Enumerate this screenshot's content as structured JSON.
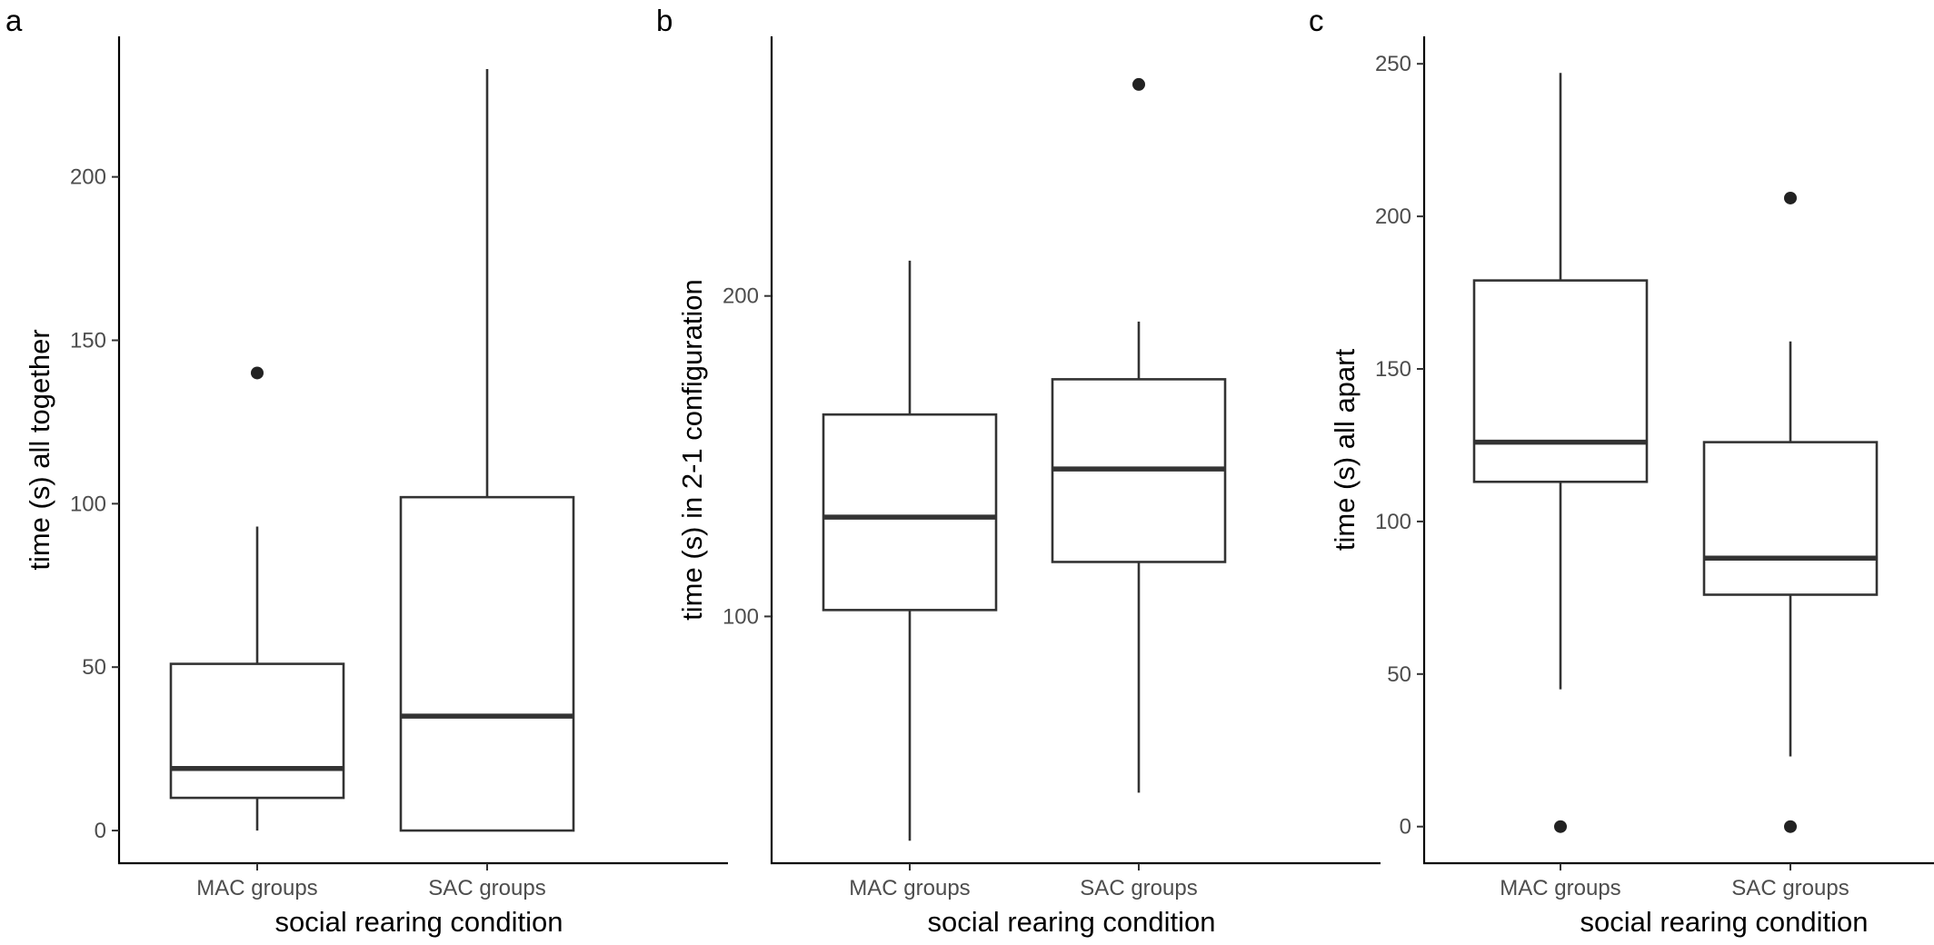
{
  "chart_data": [
    {
      "panel": "a",
      "type": "boxplot",
      "categories": [
        "MAC groups",
        "SAC groups"
      ],
      "xlabel": "social rearing condition",
      "ylabel": "time (s) all together",
      "ylim": [
        -10,
        243
      ],
      "yticks": [
        0,
        50,
        100,
        150,
        200
      ],
      "boxes": [
        {
          "category": "MAC groups",
          "min": 0,
          "q1": 10,
          "median": 19,
          "q3": 51,
          "max": 93,
          "outliers": [
            140
          ]
        },
        {
          "category": "SAC groups",
          "min": 0,
          "q1": 0,
          "median": 35,
          "q3": 102,
          "max": 233,
          "outliers": []
        }
      ],
      "grid": false,
      "legend": "none"
    },
    {
      "panel": "b",
      "type": "boxplot",
      "categories": [
        "MAC groups",
        "SAC groups"
      ],
      "xlabel": "social rearing condition",
      "ylabel": "time (s) in 2-1 configuration",
      "ylim": [
        23,
        281
      ],
      "yticks": [
        100,
        200
      ],
      "boxes": [
        {
          "category": "MAC groups",
          "min": 30,
          "q1": 102,
          "median": 131,
          "q3": 163,
          "max": 211,
          "outliers": []
        },
        {
          "category": "SAC groups",
          "min": 45,
          "q1": 117,
          "median": 146,
          "q3": 174,
          "max": 192,
          "outliers": [
            266
          ]
        }
      ],
      "grid": false,
      "legend": "none"
    },
    {
      "panel": "c",
      "type": "boxplot",
      "categories": [
        "MAC groups",
        "SAC groups"
      ],
      "xlabel": "social rearing condition",
      "ylabel": "time (s) all apart",
      "ylim": [
        -12,
        259
      ],
      "yticks": [
        0,
        50,
        100,
        150,
        200,
        250
      ],
      "boxes": [
        {
          "category": "MAC groups",
          "min": 45,
          "q1": 113,
          "median": 126,
          "q3": 179,
          "max": 247,
          "outliers": [
            0
          ]
        },
        {
          "category": "SAC groups",
          "min": 23,
          "q1": 76,
          "median": 88,
          "q3": 126,
          "max": 159,
          "outliers": [
            206,
            0
          ]
        }
      ],
      "grid": false,
      "legend": "none"
    }
  ]
}
